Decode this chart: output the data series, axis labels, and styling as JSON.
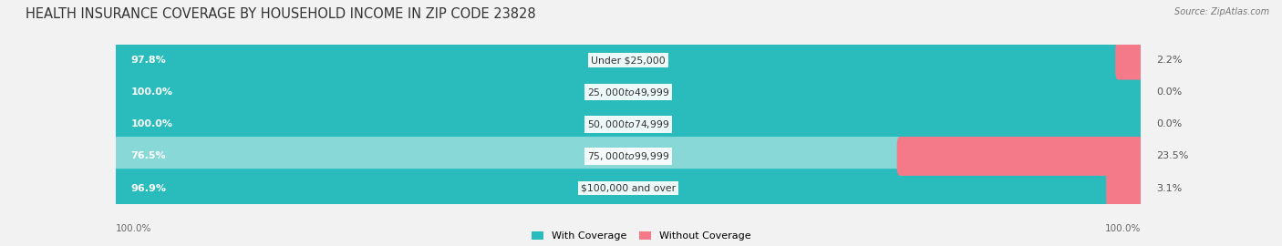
{
  "title": "HEALTH INSURANCE COVERAGE BY HOUSEHOLD INCOME IN ZIP CODE 23828",
  "source": "Source: ZipAtlas.com",
  "categories": [
    "Under $25,000",
    "$25,000 to $49,999",
    "$50,000 to $74,999",
    "$75,000 to $99,999",
    "$100,000 and over"
  ],
  "with_coverage": [
    97.8,
    100.0,
    100.0,
    76.5,
    96.9
  ],
  "without_coverage": [
    2.2,
    0.0,
    0.0,
    23.5,
    3.1
  ],
  "color_with_dark": "#2abcbc",
  "color_with_light": "#88d8d8",
  "color_without": "#f47a8a",
  "background_color": "#f2f2f2",
  "bar_background": "#e0e0e0",
  "title_fontsize": 10.5,
  "label_fontsize": 8.0,
  "cat_fontsize": 7.8,
  "tick_fontsize": 7.5,
  "legend_fontsize": 8.0,
  "bar_height": 0.62,
  "with_coverage_threshold": 90.0
}
